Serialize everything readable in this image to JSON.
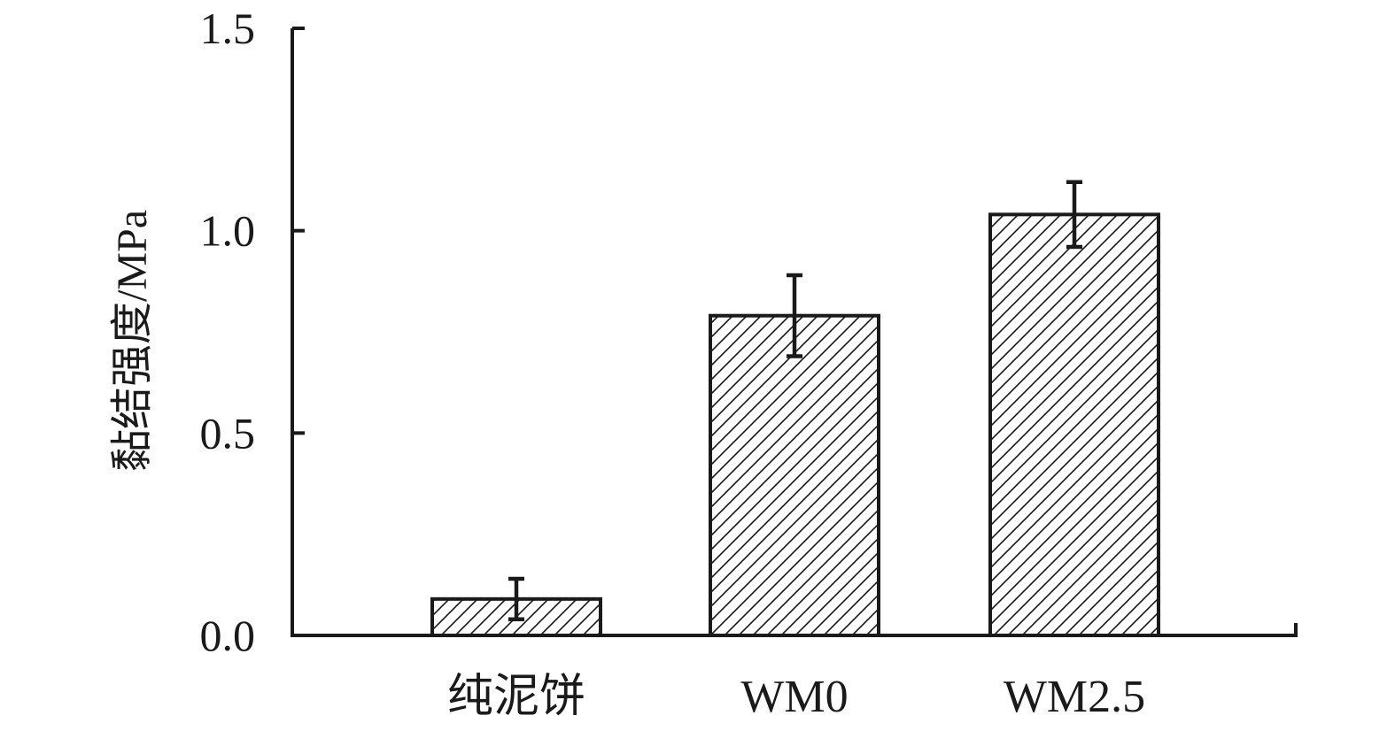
{
  "chart_data": {
    "type": "bar",
    "categories": [
      "纯泥饼",
      "WM0",
      "WM2.5"
    ],
    "values": [
      0.09,
      0.79,
      1.04
    ],
    "errors": [
      0.05,
      0.1,
      0.08
    ],
    "ylabel": "黏结强度/MPa",
    "xlabel": "",
    "ylim": [
      0,
      1.5
    ],
    "yticks": [
      0.0,
      0.5,
      1.0,
      1.5
    ],
    "ytick_labels": [
      "0.0",
      "0.5",
      "1.0",
      "1.5"
    ],
    "bar_fill": "hatched",
    "grid": false,
    "legend": "none",
    "colors": {
      "ink": "#1a1a1a",
      "background": "#ffffff"
    }
  }
}
